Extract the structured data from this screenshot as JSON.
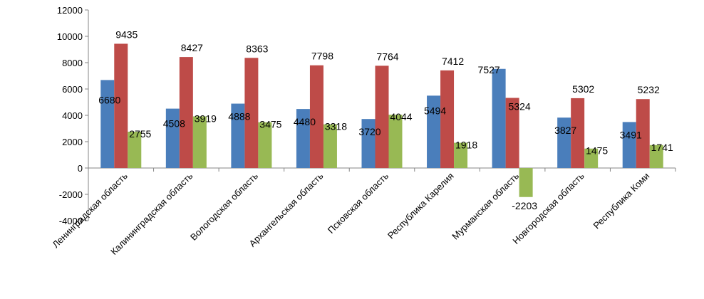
{
  "chart_data": {
    "type": "bar",
    "categories": [
      "Ленинградская область",
      "Калининградская область",
      "Вологодская область",
      "Архангельская область",
      "Псковская область",
      "Республика Карелия",
      "Мурманская область",
      "Новгородская область",
      "Республика Коми"
    ],
    "series": [
      {
        "color": "#4a7ebb",
        "values": [
          6680,
          4508,
          4888,
          4480,
          3720,
          5494,
          7527,
          3827,
          3491
        ]
      },
      {
        "color": "#be4b48",
        "values": [
          9435,
          8427,
          8363,
          7798,
          7764,
          7412,
          5324,
          5302,
          5232
        ]
      },
      {
        "color": "#98b954",
        "values": [
          2755,
          3919,
          3475,
          3318,
          4044,
          1918,
          -2203,
          1475,
          1741
        ]
      }
    ],
    "data_labels": [
      [
        "6680",
        "4508",
        "4888",
        "4480",
        "3720",
        "5494",
        "7527",
        "3827",
        "3491"
      ],
      [
        "9435",
        "8427",
        "8363",
        "7798",
        "7764",
        "7412",
        "5324",
        "5302",
        "5232"
      ],
      [
        "2755",
        "3919",
        "3475",
        "3318",
        "4044",
        "1918",
        "-2203",
        "1475",
        "1741"
      ]
    ],
    "ylim": [
      -4000,
      12000
    ],
    "yticks": [
      -4000,
      -2000,
      0,
      2000,
      4000,
      6000,
      8000,
      10000,
      12000
    ],
    "ytick_labels": [
      "-4000",
      "-2000",
      "0",
      "2000",
      "4000",
      "6000",
      "8000",
      "10000",
      "12000"
    ],
    "grid": false,
    "legend": "none"
  }
}
